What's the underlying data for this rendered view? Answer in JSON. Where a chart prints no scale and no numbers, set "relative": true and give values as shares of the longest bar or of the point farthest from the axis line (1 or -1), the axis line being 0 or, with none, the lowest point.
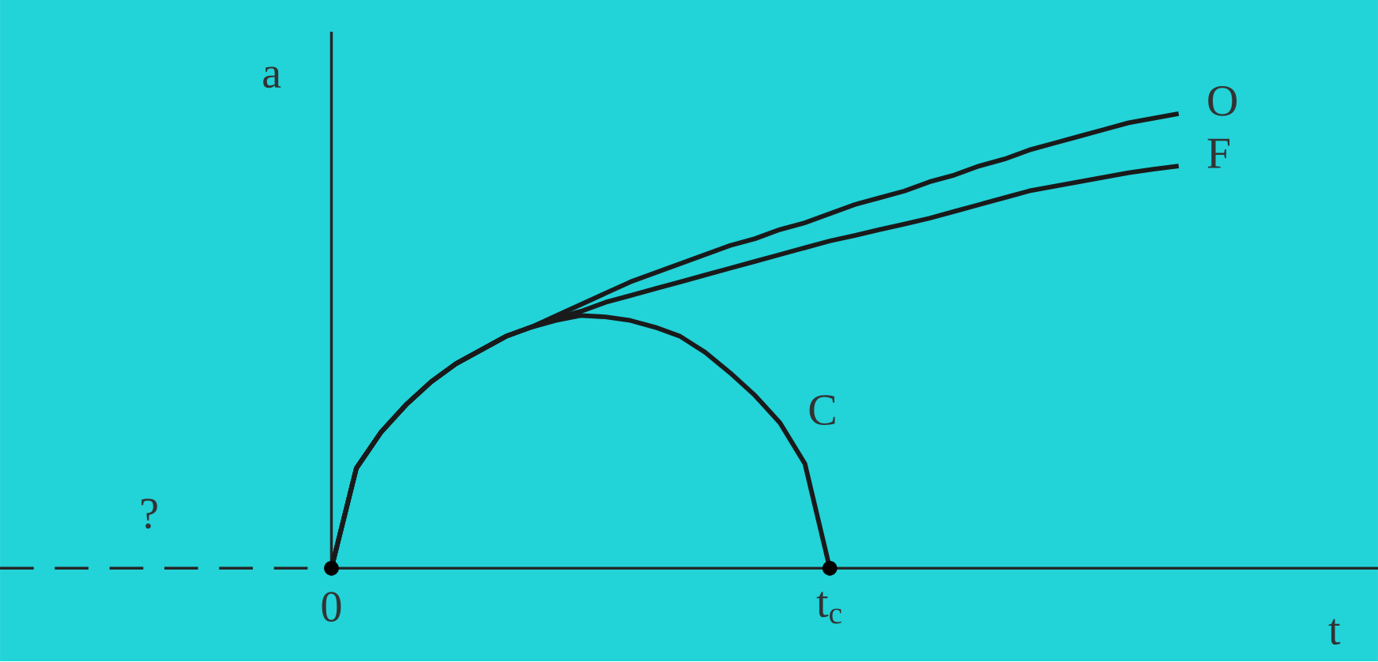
{
  "chart_data": {
    "type": "line",
    "relative": true,
    "xlabel": "t",
    "ylabel": "a",
    "annotations": [
      "?"
    ],
    "marker": "none",
    "line_style": "solid",
    "categories": [
      "0",
      null,
      null,
      null,
      null,
      null,
      null,
      null,
      null,
      null,
      null,
      null,
      null,
      null,
      null,
      null,
      null,
      null,
      null,
      null,
      "t$_{c}$",
      null,
      null,
      null,
      null,
      null,
      null,
      null,
      null,
      null,
      null,
      null,
      null,
      null,
      null
    ],
    "series": [
      {
        "name": "O",
        "color": "#1a1a1a",
        "values": [
          0,
          0.22,
          0.3,
          0.36,
          0.41,
          0.45,
          0.48,
          0.51,
          0.53,
          0.555,
          0.58,
          0.605,
          0.63,
          0.65,
          0.67,
          0.69,
          0.71,
          0.725,
          0.745,
          0.76,
          0.78,
          0.8,
          0.815,
          0.83,
          0.85,
          0.865,
          0.885,
          0.9,
          0.92,
          0.935,
          0.95,
          0.965,
          0.98,
          0.99,
          1.0
        ]
      },
      {
        "name": "F",
        "color": "#1a1a1a",
        "values": [
          0,
          0.22,
          0.3,
          0.36,
          0.41,
          0.45,
          0.48,
          0.51,
          0.53,
          0.55,
          0.565,
          0.585,
          0.6,
          0.615,
          0.63,
          0.645,
          0.66,
          0.675,
          0.69,
          0.705,
          0.72,
          0.732,
          0.745,
          0.757,
          0.77,
          0.785,
          0.8,
          0.815,
          0.83,
          0.84,
          0.85,
          0.86,
          0.87,
          0.878,
          0.885
        ]
      },
      {
        "name": "C",
        "color": "#1a1a1a",
        "values": [
          0,
          0.22,
          0.3,
          0.36,
          0.41,
          0.45,
          0.48,
          0.51,
          0.53,
          0.545,
          0.556,
          0.553,
          0.545,
          0.53,
          0.51,
          0.475,
          0.43,
          0.38,
          0.32,
          0.23,
          0,
          null,
          null,
          null,
          null,
          null,
          null,
          null,
          null,
          null,
          null,
          null,
          null,
          null,
          null
        ]
      }
    ]
  }
}
